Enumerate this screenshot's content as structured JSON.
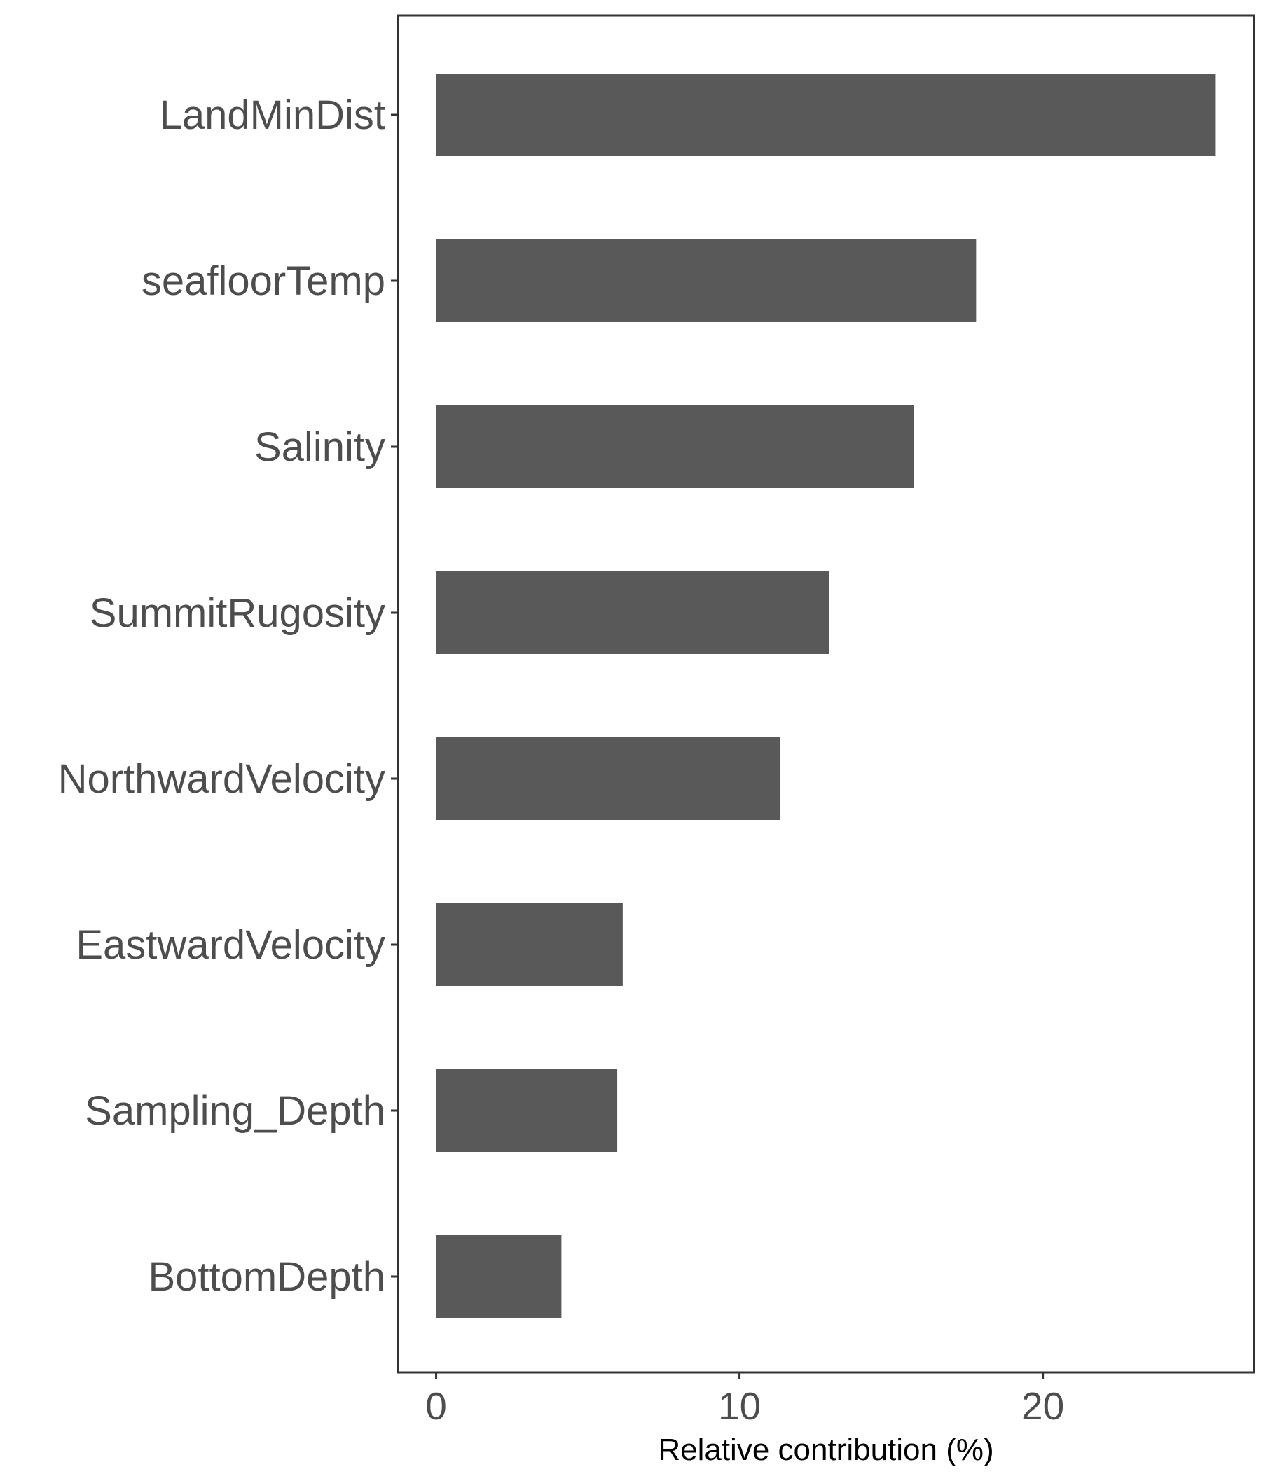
{
  "chart_data": {
    "type": "bar",
    "orientation": "horizontal",
    "categories": [
      "LandMinDist",
      "seafloorTemp",
      "Salinity",
      "SummitRugosity",
      "NorthwardVelocity",
      "EastwardVelocity",
      "Sampling_Depth",
      "BottomDepth"
    ],
    "values": [
      25.7,
      17.8,
      15.75,
      12.95,
      11.35,
      6.15,
      5.97,
      4.13
    ],
    "title": "",
    "xlabel": "Relative contribution (%)",
    "ylabel": "",
    "xlim": [
      -1.26,
      26.96
    ],
    "x_ticks": [
      0,
      10,
      20
    ],
    "x_tick_labels": [
      "0",
      "10",
      "20"
    ],
    "grid": false,
    "legend": "none",
    "colors": {
      "bar": "#595959",
      "panel_border": "#333333",
      "tick_label": "#4d4d4d",
      "axis_title": "#000000",
      "background": "#ffffff"
    }
  }
}
